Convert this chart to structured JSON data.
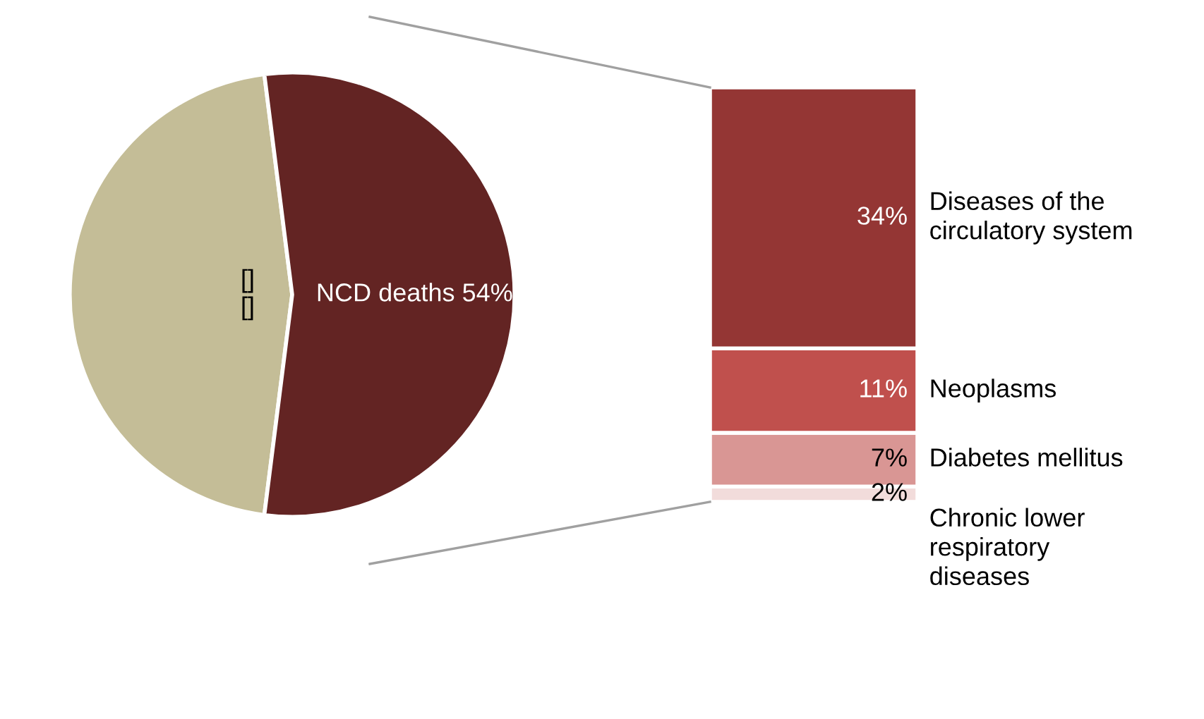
{
  "chart_data": [
    {
      "type": "pie",
      "categories": [
        "[]",
        "NCD deaths"
      ],
      "values": [
        46,
        54
      ],
      "value_labels": [
        "[]",
        "54%"
      ],
      "colors": [
        "#c4bd97",
        "#632423"
      ]
    },
    {
      "type": "bar",
      "stacked": true,
      "categories": [
        null
      ],
      "series": [
        {
          "name": "Chronic lower\nrespiratory\ndiseases",
          "color": "#f2dcdb",
          "values": [
            2
          ],
          "value_labels": [
            "2%"
          ]
        },
        {
          "name": "Diabetes mellitus",
          "color": "#d99694",
          "values": [
            7
          ],
          "value_labels": [
            "7%"
          ]
        },
        {
          "name": "Neoplasms",
          "color": "#c0504d",
          "values": [
            11
          ],
          "value_labels": [
            "11%"
          ]
        },
        {
          "name": "Diseases of the\ncirculatory system",
          "color": "#943634",
          "values": [
            34
          ],
          "value_labels": [
            "34%"
          ]
        }
      ]
    }
  ]
}
